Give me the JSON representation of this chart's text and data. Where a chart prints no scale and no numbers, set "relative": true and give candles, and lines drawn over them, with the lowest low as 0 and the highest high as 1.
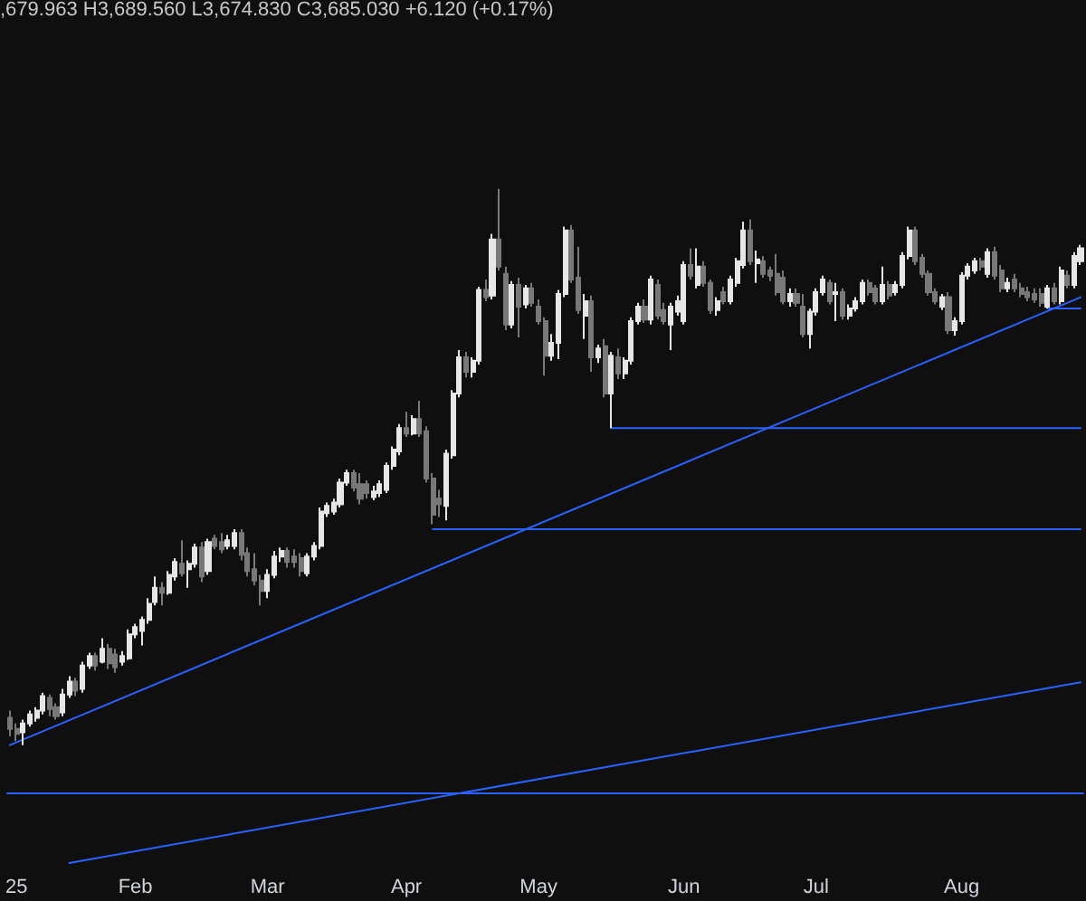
{
  "chart_data": {
    "type": "candlestick",
    "relative": true,
    "marker": "none",
    "annotations": [
      ",679.963 H3,689.560 L3,674.830 C3,685.030 +6.120 (+0.17%)"
    ],
    "categories": [
      null,
      "25",
      null,
      null,
      null,
      null,
      null,
      null,
      null,
      null,
      null,
      null,
      null,
      null,
      null,
      null,
      null,
      null,
      null,
      "Feb",
      null,
      null,
      null,
      null,
      null,
      null,
      null,
      null,
      null,
      null,
      null,
      null,
      null,
      null,
      null,
      null,
      null,
      null,
      null,
      "Mar",
      null,
      null,
      null,
      null,
      null,
      null,
      null,
      null,
      null,
      null,
      null,
      null,
      null,
      null,
      null,
      null,
      null,
      null,
      null,
      null,
      "Apr",
      null,
      null,
      null,
      null,
      null,
      null,
      null,
      null,
      null,
      null,
      null,
      null,
      null,
      null,
      null,
      null,
      null,
      null,
      null,
      "May",
      null,
      null,
      null,
      null,
      null,
      null,
      null,
      null,
      null,
      null,
      null,
      null,
      null,
      null,
      null,
      null,
      null,
      null,
      null,
      null,
      null,
      "Jun",
      null,
      null,
      null,
      null,
      null,
      null,
      null,
      null,
      null,
      null,
      null,
      null,
      null,
      null,
      null,
      null,
      null,
      null,
      null,
      "Jul",
      null,
      null,
      null,
      null,
      null,
      null,
      null,
      null,
      null,
      null,
      null,
      null,
      null,
      null,
      null,
      null,
      null,
      null,
      null,
      null,
      null,
      "Aug",
      null,
      null,
      null,
      null,
      null,
      null,
      null,
      null,
      null,
      null,
      null,
      null,
      null,
      null,
      null,
      null,
      null,
      null
    ],
    "ohlc": [
      [
        0.049,
        0.062,
        0.016,
        0.029
      ],
      [
        0.029,
        0.039,
        0.007,
        0.02
      ],
      [
        0.023,
        0.046,
        0,
        0.039
      ],
      [
        0.039,
        0.062,
        0.033,
        0.055
      ],
      [
        0.049,
        0.068,
        0.042,
        0.062
      ],
      [
        0.062,
        0.094,
        0.055,
        0.088
      ],
      [
        0.085,
        0.091,
        0.052,
        0.065
      ],
      [
        0.068,
        0.075,
        0.046,
        0.052
      ],
      [
        0.059,
        0.101,
        0.052,
        0.091
      ],
      [
        0.091,
        0.124,
        0.085,
        0.114
      ],
      [
        0.114,
        0.121,
        0.088,
        0.098
      ],
      [
        0.101,
        0.15,
        0.094,
        0.143
      ],
      [
        0.143,
        0.166,
        0.137,
        0.16
      ],
      [
        0.16,
        0.166,
        0.134,
        0.143
      ],
      [
        0.15,
        0.192,
        0.147,
        0.173
      ],
      [
        0.173,
        0.182,
        0.137,
        0.147
      ],
      [
        0.163,
        0.173,
        0.13,
        0.14
      ],
      [
        0.15,
        0.169,
        0.143,
        0.16
      ],
      [
        0.156,
        0.208,
        0.153,
        0.199
      ],
      [
        0.199,
        0.218,
        0.192,
        0.212
      ],
      [
        0.205,
        0.231,
        0.179,
        0.225
      ],
      [
        0.225,
        0.264,
        0.218,
        0.254
      ],
      [
        0.257,
        0.303,
        0.251,
        0.283
      ],
      [
        0.283,
        0.293,
        0.251,
        0.274
      ],
      [
        0.274,
        0.313,
        0.27,
        0.306
      ],
      [
        0.303,
        0.336,
        0.296,
        0.329
      ],
      [
        0.326,
        0.368,
        0.303,
        0.309
      ],
      [
        0.316,
        0.332,
        0.283,
        0.326
      ],
      [
        0.326,
        0.362,
        0.319,
        0.355
      ],
      [
        0.355,
        0.365,
        0.293,
        0.303
      ],
      [
        0.313,
        0.371,
        0.306,
        0.365
      ],
      [
        0.371,
        0.378,
        0.352,
        0.358
      ],
      [
        0.365,
        0.381,
        0.345,
        0.352
      ],
      [
        0.358,
        0.378,
        0.352,
        0.368
      ],
      [
        0.358,
        0.388,
        0.352,
        0.381
      ],
      [
        0.381,
        0.388,
        0.332,
        0.342
      ],
      [
        0.345,
        0.355,
        0.303,
        0.313
      ],
      [
        0.316,
        0.345,
        0.287,
        0.296
      ],
      [
        0.296,
        0.306,
        0.251,
        0.277
      ],
      [
        0.277,
        0.316,
        0.264,
        0.306
      ],
      [
        0.306,
        0.349,
        0.3,
        0.339
      ],
      [
        0.339,
        0.355,
        0.329,
        0.349
      ],
      [
        0.349,
        0.355,
        0.319,
        0.329
      ],
      [
        0.339,
        0.352,
        0.319,
        0.329
      ],
      [
        0.336,
        0.345,
        0.303,
        0.313
      ],
      [
        0.309,
        0.345,
        0.303,
        0.339
      ],
      [
        0.339,
        0.365,
        0.332,
        0.358
      ],
      [
        0.358,
        0.427,
        0.352,
        0.42
      ],
      [
        0.417,
        0.436,
        0.41,
        0.43
      ],
      [
        0.42,
        0.443,
        0.414,
        0.436
      ],
      [
        0.433,
        0.479,
        0.427,
        0.472
      ],
      [
        0.472,
        0.495,
        0.466,
        0.489
      ],
      [
        0.489,
        0.495,
        0.456,
        0.463
      ],
      [
        0.469,
        0.489,
        0.433,
        0.443
      ],
      [
        0.469,
        0.476,
        0.443,
        0.453
      ],
      [
        0.446,
        0.466,
        0.44,
        0.456
      ],
      [
        0.453,
        0.476,
        0.446,
        0.469
      ],
      [
        0.459,
        0.508,
        0.453,
        0.502
      ],
      [
        0.502,
        0.537,
        0.495,
        0.531
      ],
      [
        0.528,
        0.577,
        0.521,
        0.57
      ],
      [
        0.57,
        0.599,
        0.554,
        0.56
      ],
      [
        0.56,
        0.593,
        0.557,
        0.586
      ],
      [
        0.586,
        0.619,
        0.554,
        0.56
      ],
      [
        0.564,
        0.573,
        0.472,
        0.479
      ],
      [
        0.479,
        0.489,
        0.397,
        0.414
      ],
      [
        0.443,
        0.459,
        0.41,
        0.433
      ],
      [
        0.43,
        0.531,
        0.404,
        0.524
      ],
      [
        0.521,
        0.638,
        0.515,
        0.632
      ],
      [
        0.632,
        0.71,
        0.625,
        0.697
      ],
      [
        0.697,
        0.707,
        0.661,
        0.671
      ],
      [
        0.671,
        0.697,
        0.661,
        0.691
      ],
      [
        0.691,
        0.824,
        0.684,
        0.818
      ],
      [
        0.818,
        0.837,
        0.798,
        0.805
      ],
      [
        0.808,
        0.919,
        0.801,
        0.909
      ],
      [
        0.909,
        1,
        0.853,
        0.86
      ],
      [
        0.847,
        0.86,
        0.746,
        0.756
      ],
      [
        0.756,
        0.834,
        0.749,
        0.827
      ],
      [
        0.827,
        0.84,
        0.733,
        0.788
      ],
      [
        0.792,
        0.827,
        0.785,
        0.821
      ],
      [
        0.821,
        0.831,
        0.788,
        0.795
      ],
      [
        0.788,
        0.801,
        0.756,
        0.762
      ],
      [
        0.762,
        0.769,
        0.664,
        0.7
      ],
      [
        0.7,
        0.739,
        0.691,
        0.723
      ],
      [
        0.723,
        0.818,
        0.694,
        0.811
      ],
      [
        0.811,
        0.932,
        0.805,
        0.925
      ],
      [
        0.925,
        0.935,
        0.831,
        0.837
      ],
      [
        0.84,
        0.896,
        0.775,
        0.782
      ],
      [
        0.772,
        0.811,
        0.73,
        0.798
      ],
      [
        0.798,
        0.808,
        0.671,
        0.697
      ],
      [
        0.697,
        0.72,
        0.687,
        0.713
      ],
      [
        0.717,
        0.73,
        0.625,
        0.632
      ],
      [
        0.632,
        0.707,
        0.57,
        0.7
      ],
      [
        0.697,
        0.713,
        0.658,
        0.668
      ],
      [
        0.668,
        0.697,
        0.658,
        0.691
      ],
      [
        0.691,
        0.769,
        0.684,
        0.762
      ],
      [
        0.762,
        0.795,
        0.756,
        0.788
      ],
      [
        0.788,
        0.801,
        0.759,
        0.765
      ],
      [
        0.765,
        0.844,
        0.756,
        0.837
      ],
      [
        0.827,
        0.837,
        0.765,
        0.772
      ],
      [
        0.782,
        0.795,
        0.756,
        0.762
      ],
      [
        0.756,
        0.795,
        0.71,
        0.788
      ],
      [
        0.779,
        0.808,
        0.772,
        0.798
      ],
      [
        0.762,
        0.87,
        0.756,
        0.863
      ],
      [
        0.863,
        0.893,
        0.837,
        0.844
      ],
      [
        0.827,
        0.893,
        0.821,
        0.86
      ],
      [
        0.86,
        0.87,
        0.824,
        0.831
      ],
      [
        0.831,
        0.837,
        0.775,
        0.782
      ],
      [
        0.782,
        0.805,
        0.772,
        0.798
      ],
      [
        0.814,
        0.824,
        0.792,
        0.798
      ],
      [
        0.798,
        0.844,
        0.792,
        0.837
      ],
      [
        0.831,
        0.876,
        0.824,
        0.87
      ],
      [
        0.863,
        0.941,
        0.857,
        0.925
      ],
      [
        0.925,
        0.945,
        0.863,
        0.87
      ],
      [
        0.866,
        0.889,
        0.831,
        0.873
      ],
      [
        0.87,
        0.879,
        0.84,
        0.847
      ],
      [
        0.853,
        0.86,
        0.834,
        0.844
      ],
      [
        0.847,
        0.883,
        0.808,
        0.814
      ],
      [
        0.84,
        0.853,
        0.792,
        0.798
      ],
      [
        0.798,
        0.821,
        0.788,
        0.811
      ],
      [
        0.811,
        0.821,
        0.788,
        0.795
      ],
      [
        0.788,
        0.811,
        0.733,
        0.739
      ],
      [
        0.739,
        0.785,
        0.713,
        0.779
      ],
      [
        0.779,
        0.821,
        0.772,
        0.814
      ],
      [
        0.814,
        0.844,
        0.808,
        0.837
      ],
      [
        0.831,
        0.837,
        0.792,
        0.798
      ],
      [
        0.811,
        0.831,
        0.762,
        0.814
      ],
      [
        0.814,
        0.821,
        0.765,
        0.772
      ],
      [
        0.772,
        0.792,
        0.765,
        0.785
      ],
      [
        0.785,
        0.805,
        0.779,
        0.798
      ],
      [
        0.798,
        0.837,
        0.792,
        0.831
      ],
      [
        0.831,
        0.837,
        0.808,
        0.814
      ],
      [
        0.821,
        0.827,
        0.792,
        0.798
      ],
      [
        0.798,
        0.86,
        0.792,
        0.827
      ],
      [
        0.827,
        0.834,
        0.801,
        0.808
      ],
      [
        0.814,
        0.834,
        0.808,
        0.827
      ],
      [
        0.827,
        0.886,
        0.821,
        0.879
      ],
      [
        0.879,
        0.932,
        0.873,
        0.925
      ],
      [
        0.925,
        0.932,
        0.863,
        0.87
      ],
      [
        0.876,
        0.883,
        0.84,
        0.847
      ],
      [
        0.847,
        0.853,
        0.808,
        0.814
      ],
      [
        0.814,
        0.821,
        0.792,
        0.798
      ],
      [
        0.788,
        0.811,
        0.782,
        0.805
      ],
      [
        0.805,
        0.814,
        0.739,
        0.746
      ],
      [
        0.746,
        0.769,
        0.736,
        0.762
      ],
      [
        0.762,
        0.85,
        0.756,
        0.844
      ],
      [
        0.844,
        0.866,
        0.837,
        0.86
      ],
      [
        0.853,
        0.876,
        0.847,
        0.87
      ],
      [
        0.87,
        0.876,
        0.853,
        0.86
      ],
      [
        0.847,
        0.893,
        0.84,
        0.886
      ],
      [
        0.886,
        0.896,
        0.837,
        0.844
      ],
      [
        0.853,
        0.863,
        0.814,
        0.821
      ],
      [
        0.821,
        0.84,
        0.814,
        0.831
      ],
      [
        0.837,
        0.847,
        0.814,
        0.821
      ],
      [
        0.821,
        0.831,
        0.805,
        0.811
      ],
      [
        0.814,
        0.824,
        0.798,
        0.805
      ],
      [
        0.811,
        0.821,
        0.795,
        0.801
      ],
      [
        0.811,
        0.821,
        0.788,
        0.795
      ],
      [
        0.788,
        0.827,
        0.785,
        0.821
      ],
      [
        0.821,
        0.831,
        0.792,
        0.798
      ],
      [
        0.798,
        0.86,
        0.792,
        0.853
      ],
      [
        0.844,
        0.853,
        0.821,
        0.827
      ],
      [
        0.827,
        0.886,
        0.821,
        0.879
      ],
      [
        0.87,
        0.899,
        0.863,
        0.893
      ]
    ],
    "colors": [
      "#787878",
      "#787878",
      "#e6e6e6",
      "#e6e6e6",
      "#e6e6e6",
      "#e6e6e6",
      "#787878",
      "#787878",
      "#e6e6e6",
      "#e6e6e6",
      "#787878",
      "#e6e6e6",
      "#e6e6e6",
      "#787878",
      "#e6e6e6",
      "#787878",
      "#787878",
      "#e6e6e6",
      "#e6e6e6",
      "#e6e6e6",
      "#e6e6e6",
      "#e6e6e6",
      "#e6e6e6",
      "#787878",
      "#e6e6e6",
      "#e6e6e6",
      "#787878",
      "#e6e6e6",
      "#e6e6e6",
      "#787878",
      "#e6e6e6",
      "#787878",
      "#787878",
      "#e6e6e6",
      "#e6e6e6",
      "#787878",
      "#787878",
      "#787878",
      "#787878",
      "#e6e6e6",
      "#e6e6e6",
      "#e6e6e6",
      "#787878",
      "#787878",
      "#787878",
      "#e6e6e6",
      "#e6e6e6",
      "#e6e6e6",
      "#e6e6e6",
      "#e6e6e6",
      "#e6e6e6",
      "#e6e6e6",
      "#787878",
      "#787878",
      "#787878",
      "#e6e6e6",
      "#e6e6e6",
      "#e6e6e6",
      "#e6e6e6",
      "#e6e6e6",
      "#787878",
      "#e6e6e6",
      "#787878",
      "#787878",
      "#787878",
      "#787878",
      "#e6e6e6",
      "#e6e6e6",
      "#e6e6e6",
      "#787878",
      "#e6e6e6",
      "#e6e6e6",
      "#787878",
      "#e6e6e6",
      "#787878",
      "#787878",
      "#e6e6e6",
      "#787878",
      "#e6e6e6",
      "#787878",
      "#787878",
      "#787878",
      "#e6e6e6",
      "#e6e6e6",
      "#e6e6e6",
      "#787878",
      "#787878",
      "#e6e6e6",
      "#787878",
      "#e6e6e6",
      "#787878",
      "#e6e6e6",
      "#787878",
      "#e6e6e6",
      "#e6e6e6",
      "#e6e6e6",
      "#787878",
      "#e6e6e6",
      "#787878",
      "#787878",
      "#e6e6e6",
      "#e6e6e6",
      "#e6e6e6",
      "#787878",
      "#e6e6e6",
      "#787878",
      "#787878",
      "#e6e6e6",
      "#787878",
      "#e6e6e6",
      "#e6e6e6",
      "#e6e6e6",
      "#787878",
      "#e6e6e6",
      "#787878",
      "#787878",
      "#787878",
      "#787878",
      "#e6e6e6",
      "#787878",
      "#787878",
      "#e6e6e6",
      "#e6e6e6",
      "#e6e6e6",
      "#787878",
      "#e6e6e6",
      "#787878",
      "#e6e6e6",
      "#e6e6e6",
      "#e6e6e6",
      "#787878",
      "#787878",
      "#e6e6e6",
      "#787878",
      "#e6e6e6",
      "#e6e6e6",
      "#e6e6e6",
      "#787878",
      "#787878",
      "#787878",
      "#787878",
      "#e6e6e6",
      "#787878",
      "#e6e6e6",
      "#e6e6e6",
      "#e6e6e6",
      "#e6e6e6",
      "#787878",
      "#e6e6e6",
      "#787878",
      "#787878",
      "#e6e6e6",
      "#787878",
      "#787878",
      "#787878",
      "#787878",
      "#787878",
      "#e6e6e6",
      "#787878",
      "#e6e6e6",
      "#787878",
      "#e6e6e6",
      "#e6e6e6"
    ],
    "series": [
      {
        "type": "line",
        "color": "#2962ff",
        "values": [
          0,
          null,
          null,
          null,
          null,
          null,
          null,
          null,
          null,
          null,
          null,
          null,
          null,
          null,
          null,
          null,
          null,
          null,
          null,
          null,
          null,
          null,
          null,
          null,
          null,
          null,
          null,
          null,
          null,
          null,
          null,
          null,
          null,
          null,
          null,
          null,
          null,
          null,
          null,
          null,
          null,
          null,
          null,
          null,
          null,
          null,
          null,
          null,
          null,
          null,
          null,
          null,
          null,
          null,
          null,
          null,
          null,
          null,
          null,
          null,
          null,
          null,
          null,
          null,
          null,
          null,
          null,
          null,
          null,
          null,
          null,
          null,
          null,
          null,
          null,
          null,
          null,
          null,
          null,
          null,
          null,
          null,
          null,
          null,
          null,
          null,
          null,
          null,
          null,
          null,
          null,
          null,
          null,
          null,
          null,
          null,
          null,
          null,
          null,
          null,
          null,
          null,
          null,
          null,
          null,
          null,
          null,
          null,
          null,
          null,
          null,
          null,
          null,
          null,
          null,
          null,
          null,
          null,
          null,
          null,
          null,
          null,
          null,
          null,
          null,
          null,
          null,
          null,
          null,
          null,
          null,
          null,
          null,
          null,
          null,
          null,
          null,
          null,
          null,
          null,
          null,
          null,
          null,
          null,
          null,
          null,
          null,
          null,
          null,
          null,
          null,
          null,
          null,
          null,
          null,
          null,
          null,
          null,
          null,
          null,
          null,
          null,
          0.805
        ]
      },
      {
        "type": "line",
        "color": "#2962ff",
        "values": [
          null,
          null,
          null,
          null,
          null,
          null,
          null,
          null,
          null,
          -0.212,
          null,
          null,
          null,
          null,
          null,
          null,
          null,
          null,
          null,
          null,
          null,
          null,
          null,
          null,
          null,
          null,
          null,
          null,
          null,
          null,
          null,
          null,
          null,
          null,
          null,
          null,
          null,
          null,
          null,
          null,
          null,
          null,
          null,
          null,
          null,
          null,
          null,
          null,
          null,
          null,
          null,
          null,
          null,
          null,
          null,
          null,
          null,
          null,
          null,
          null,
          null,
          null,
          null,
          null,
          null,
          null,
          null,
          null,
          null,
          null,
          null,
          null,
          null,
          null,
          null,
          null,
          null,
          null,
          null,
          null,
          null,
          null,
          null,
          null,
          null,
          null,
          null,
          null,
          null,
          null,
          null,
          null,
          null,
          null,
          null,
          null,
          null,
          null,
          null,
          null,
          null,
          null,
          null,
          null,
          null,
          null,
          null,
          null,
          null,
          null,
          null,
          null,
          null,
          null,
          null,
          null,
          null,
          null,
          null,
          null,
          null,
          null,
          null,
          null,
          null,
          null,
          null,
          null,
          null,
          null,
          null,
          null,
          null,
          null,
          null,
          null,
          null,
          null,
          null,
          null,
          null,
          null,
          null,
          null,
          null,
          null,
          null,
          null,
          null,
          null,
          null,
          null,
          null,
          null,
          null,
          null,
          null,
          null,
          null,
          null,
          null,
          null,
          0.113
        ]
      },
      {
        "type": "line",
        "color": "#2962ff",
        "values": [
          null,
          null,
          null,
          null,
          null,
          null,
          null,
          null,
          null,
          null,
          null,
          null,
          null,
          null,
          null,
          null,
          null,
          null,
          null,
          null,
          null,
          null,
          null,
          null,
          null,
          null,
          null,
          null,
          null,
          null,
          null,
          null,
          null,
          null,
          null,
          null,
          null,
          null,
          null,
          null,
          null,
          null,
          null,
          null,
          null,
          null,
          null,
          null,
          null,
          null,
          null,
          null,
          null,
          null,
          null,
          null,
          null,
          null,
          null,
          null,
          null,
          null,
          null,
          null,
          0.388,
          null,
          null,
          null,
          null,
          null,
          null,
          null,
          null,
          null,
          null,
          null,
          null,
          null,
          null,
          null,
          null,
          null,
          null,
          null,
          null,
          null,
          null,
          null,
          null,
          null,
          null,
          null,
          null,
          null,
          null,
          null,
          null,
          null,
          null,
          null,
          null,
          null,
          null,
          null,
          null,
          null,
          null,
          null,
          null,
          null,
          null,
          null,
          null,
          null,
          null,
          null,
          null,
          null,
          null,
          null,
          null,
          null,
          null,
          null,
          null,
          null,
          null,
          null,
          null,
          null,
          null,
          null,
          null,
          null,
          null,
          null,
          null,
          null,
          null,
          null,
          null,
          null,
          null,
          null,
          null,
          null,
          null,
          null,
          null,
          null,
          null,
          null,
          null,
          null,
          null,
          null,
          null,
          null,
          null,
          null,
          null,
          null,
          0.388
        ]
      },
      {
        "type": "line",
        "color": "#2962ff",
        "values": [
          null,
          null,
          null,
          null,
          null,
          null,
          null,
          null,
          null,
          null,
          null,
          null,
          null,
          null,
          null,
          null,
          null,
          null,
          null,
          null,
          null,
          null,
          null,
          null,
          null,
          null,
          null,
          null,
          null,
          null,
          null,
          null,
          null,
          null,
          null,
          null,
          null,
          null,
          null,
          null,
          null,
          null,
          null,
          null,
          null,
          null,
          null,
          null,
          null,
          null,
          null,
          null,
          null,
          null,
          null,
          null,
          null,
          null,
          null,
          null,
          null,
          null,
          null,
          null,
          null,
          null,
          null,
          null,
          null,
          null,
          null,
          null,
          null,
          null,
          null,
          null,
          null,
          null,
          null,
          null,
          null,
          null,
          null,
          null,
          null,
          null,
          null,
          null,
          null,
          null,
          null,
          0.57,
          null,
          null,
          null,
          null,
          null,
          null,
          null,
          null,
          null,
          null,
          null,
          null,
          null,
          null,
          null,
          null,
          null,
          null,
          null,
          null,
          null,
          null,
          null,
          null,
          null,
          null,
          null,
          null,
          null,
          null,
          null,
          null,
          null,
          null,
          null,
          null,
          null,
          null,
          null,
          null,
          null,
          null,
          null,
          null,
          null,
          null,
          null,
          null,
          null,
          null,
          null,
          null,
          null,
          null,
          null,
          null,
          null,
          null,
          null,
          null,
          null,
          null,
          null,
          null,
          null,
          null,
          null,
          null,
          null,
          null,
          0.57
        ]
      },
      {
        "type": "line",
        "color": "#2962ff",
        "values": [
          null,
          null,
          null,
          null,
          null,
          null,
          null,
          null,
          null,
          null,
          null,
          null,
          null,
          null,
          null,
          null,
          null,
          null,
          null,
          null,
          null,
          null,
          null,
          null,
          null,
          null,
          null,
          null,
          null,
          null,
          null,
          null,
          null,
          null,
          null,
          null,
          null,
          null,
          null,
          null,
          null,
          null,
          null,
          null,
          null,
          null,
          null,
          null,
          null,
          null,
          null,
          null,
          null,
          null,
          null,
          null,
          null,
          null,
          null,
          null,
          null,
          null,
          null,
          null,
          null,
          null,
          null,
          null,
          null,
          null,
          null,
          null,
          null,
          null,
          null,
          null,
          null,
          null,
          null,
          null,
          null,
          null,
          null,
          null,
          null,
          null,
          null,
          null,
          null,
          null,
          null,
          null,
          null,
          null,
          null,
          null,
          null,
          null,
          null,
          null,
          null,
          null,
          null,
          null,
          null,
          null,
          null,
          null,
          null,
          null,
          null,
          null,
          null,
          null,
          null,
          null,
          null,
          null,
          null,
          null,
          null,
          null,
          null,
          null,
          null,
          null,
          null,
          null,
          null,
          null,
          null,
          null,
          null,
          null,
          null,
          null,
          null,
          null,
          null,
          null,
          null,
          null,
          null,
          null,
          null,
          null,
          null,
          null,
          null,
          null,
          null,
          null,
          null,
          null,
          null,
          null,
          null,
          0.785,
          null,
          null,
          null,
          null,
          0.785
        ]
      }
    ],
    "ref_lines": [
      {
        "axis": "y",
        "value": -0.085,
        "color": "#2962ff"
      }
    ]
  }
}
